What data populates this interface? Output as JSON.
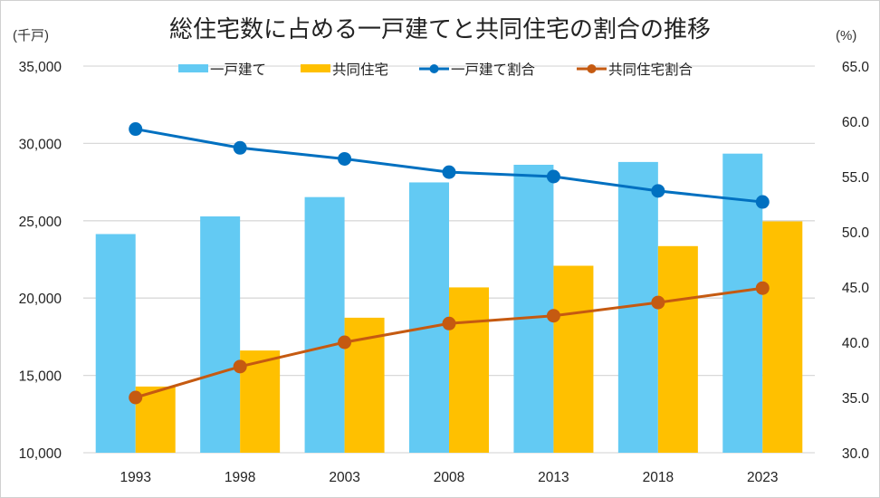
{
  "chart_data": {
    "type": "bar+line",
    "title": "総住宅数に占める一戸建てと共同住宅の割合の推移",
    "left_axis_unit": "(千戸)",
    "right_axis_unit": "(%)",
    "categories": [
      "1993",
      "1998",
      "2003",
      "2008",
      "2013",
      "2018",
      "2023"
    ],
    "left_axis": {
      "ylim": [
        10000,
        35000
      ],
      "ticks": [
        10000,
        15000,
        20000,
        25000,
        30000,
        35000
      ],
      "tick_labels": [
        "10,000",
        "15,000",
        "20,000",
        "25,000",
        "30,000",
        "35,000"
      ]
    },
    "right_axis": {
      "ylim": [
        30,
        65
      ],
      "ticks": [
        30,
        35,
        40,
        45,
        50,
        55,
        60,
        65
      ],
      "tick_labels": [
        "30.0",
        "35.0",
        "40.0",
        "45.0",
        "50.0",
        "55.0",
        "60.0",
        "65.0"
      ]
    },
    "grid": true,
    "legend_position": "top",
    "series": [
      {
        "name": "一戸建て",
        "kind": "bar",
        "axis": "left",
        "color": "#63CAF3",
        "values": [
          24140,
          25280,
          26530,
          27480,
          28620,
          28800,
          29340
        ]
      },
      {
        "name": "共同住宅",
        "kind": "bar",
        "axis": "left",
        "color": "#FFC000",
        "values": [
          14280,
          16610,
          18730,
          20690,
          22090,
          23360,
          24960
        ]
      },
      {
        "name": "一戸建て割合",
        "kind": "line",
        "axis": "right",
        "color": "#0070C0",
        "values": [
          59.3,
          57.6,
          56.6,
          55.4,
          55.0,
          53.7,
          52.7
        ]
      },
      {
        "name": "共同住宅割合",
        "kind": "line",
        "axis": "right",
        "color": "#C55A11",
        "values": [
          35.0,
          37.8,
          40.0,
          41.7,
          42.4,
          43.6,
          44.9
        ]
      }
    ]
  }
}
